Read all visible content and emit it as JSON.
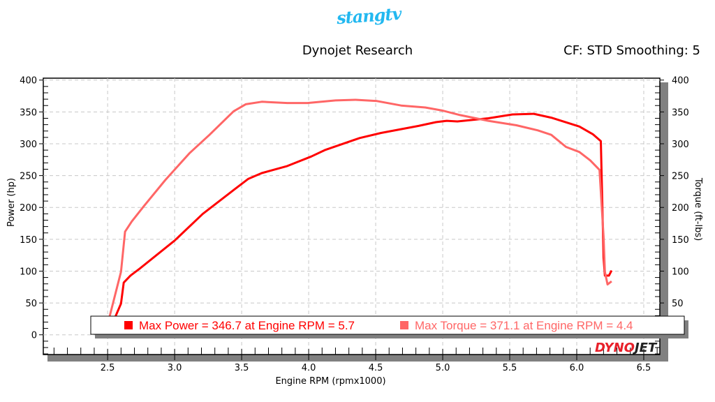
{
  "header": {
    "logo_text": "stangtv",
    "title": "Dynojet Research",
    "cf_label": "CF: STD Smoothing: 5"
  },
  "chart_data": {
    "type": "line",
    "xlabel": "Engine RPM (rpmx1000)",
    "ylabel": "Power (hp)",
    "y2label": "Torque (ft-lbs)",
    "xlim": [
      2.02,
      6.62
    ],
    "ylim": [
      -31,
      403
    ],
    "xticks": [
      2.5,
      3.0,
      3.5,
      4.0,
      4.5,
      5.0,
      5.5,
      6.0,
      6.5
    ],
    "xtick_labels": [
      "2.5",
      "3.0",
      "3.5",
      "4.0",
      "4.5",
      "5.0",
      "5.5",
      "6.0",
      "6.5"
    ],
    "yticks": [
      0,
      50,
      100,
      150,
      200,
      250,
      300,
      350,
      400
    ],
    "ytick_labels": [
      "0",
      "50",
      "100",
      "150",
      "200",
      "250",
      "300",
      "350",
      "400"
    ],
    "grid": true,
    "series": [
      {
        "name": "Power",
        "color": "#ff0000",
        "axis": "left",
        "x": [
          2.5,
          2.6,
          2.62,
          2.67,
          2.74,
          3.0,
          3.21,
          3.45,
          3.55,
          3.65,
          3.84,
          4.02,
          4.12,
          4.38,
          4.54,
          4.82,
          4.95,
          5.03,
          5.11,
          5.34,
          5.52,
          5.68,
          5.81,
          6.02,
          6.12,
          6.18,
          6.2,
          6.21,
          6.24,
          6.26
        ],
        "y": [
          0,
          49,
          82,
          93,
          104,
          148,
          190,
          229,
          245,
          254,
          265,
          280,
          290,
          309,
          317,
          328,
          334,
          336,
          335,
          340,
          346,
          347,
          341,
          327,
          315,
          304,
          121,
          93,
          93,
          101
        ]
      },
      {
        "name": "Torque",
        "color": "#ff6666",
        "axis": "right",
        "x": [
          2.48,
          2.6,
          2.63,
          2.68,
          2.77,
          2.93,
          3.11,
          3.26,
          3.44,
          3.53,
          3.65,
          3.84,
          3.99,
          4.2,
          4.35,
          4.51,
          4.69,
          4.87,
          5.0,
          5.13,
          5.34,
          5.55,
          5.71,
          5.81,
          5.92,
          6.02,
          6.1,
          6.17,
          6.2,
          6.21,
          6.23,
          6.26
        ],
        "y": [
          0,
          99,
          162,
          178,
          202,
          243,
          285,
          314,
          351,
          362,
          366,
          364,
          364,
          368,
          369,
          367,
          360,
          357,
          352,
          345,
          336,
          329,
          321,
          314,
          295,
          287,
          274,
          259,
          154,
          99,
          79,
          84
        ]
      }
    ],
    "legend": {
      "position": "bottom",
      "entries": [
        {
          "text": "Max Power = 346.7 at Engine RPM = 5.7",
          "color": "#ff0000"
        },
        {
          "text": "Max Torque = 371.1 at Engine RPM = 4.4",
          "color": "#ff6666"
        }
      ]
    },
    "watermark": "DYNOJET"
  }
}
